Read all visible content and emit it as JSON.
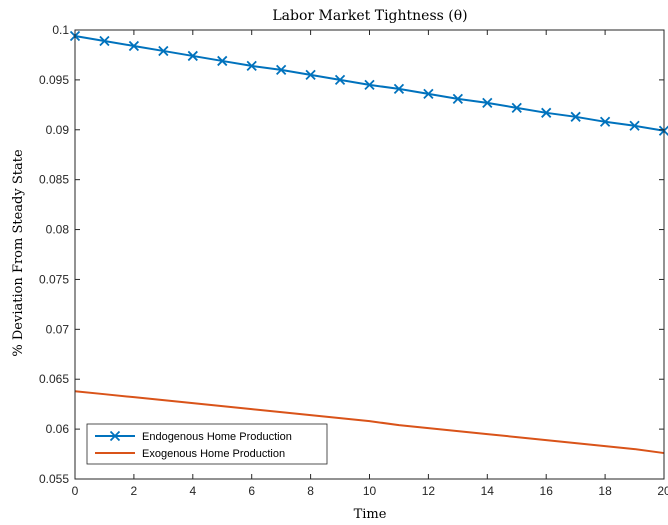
{
  "chart_data": {
    "type": "line",
    "title": "Labor Market Tightness (θ)",
    "xlabel": "Time",
    "ylabel": "% Deviation From Steady State",
    "xlim": [
      0,
      20
    ],
    "ylim": [
      0.055,
      0.1
    ],
    "x_ticks": [
      "0",
      "2",
      "4",
      "6",
      "8",
      "10",
      "12",
      "14",
      "16",
      "18",
      "20"
    ],
    "y_ticks": [
      "0.055",
      "0.06",
      "0.065",
      "0.07",
      "0.075",
      "0.08",
      "0.085",
      "0.09",
      "0.095",
      "0.1"
    ],
    "grid": false,
    "legend_position": "bottom-left",
    "x": [
      0,
      1,
      2,
      3,
      4,
      5,
      6,
      7,
      8,
      9,
      10,
      11,
      12,
      13,
      14,
      15,
      16,
      17,
      18,
      19,
      20
    ],
    "series": [
      {
        "name": "Endogenous Home Production",
        "color": "#0072BD",
        "marker": "x",
        "values": [
          0.0994,
          0.0989,
          0.0984,
          0.0979,
          0.0974,
          0.0969,
          0.0964,
          0.096,
          0.0955,
          0.095,
          0.0945,
          0.0941,
          0.0936,
          0.0931,
          0.0927,
          0.0922,
          0.0917,
          0.0913,
          0.0908,
          0.0904,
          0.0899
        ]
      },
      {
        "name": "Exogenous Home Production",
        "color": "#D95319",
        "marker": "none",
        "values": [
          0.0638,
          0.0635,
          0.0632,
          0.0629,
          0.0626,
          0.0623,
          0.062,
          0.0617,
          0.0614,
          0.0611,
          0.0608,
          0.0604,
          0.0601,
          0.0598,
          0.0595,
          0.0592,
          0.0589,
          0.0586,
          0.0583,
          0.058,
          0.0576
        ]
      }
    ]
  }
}
